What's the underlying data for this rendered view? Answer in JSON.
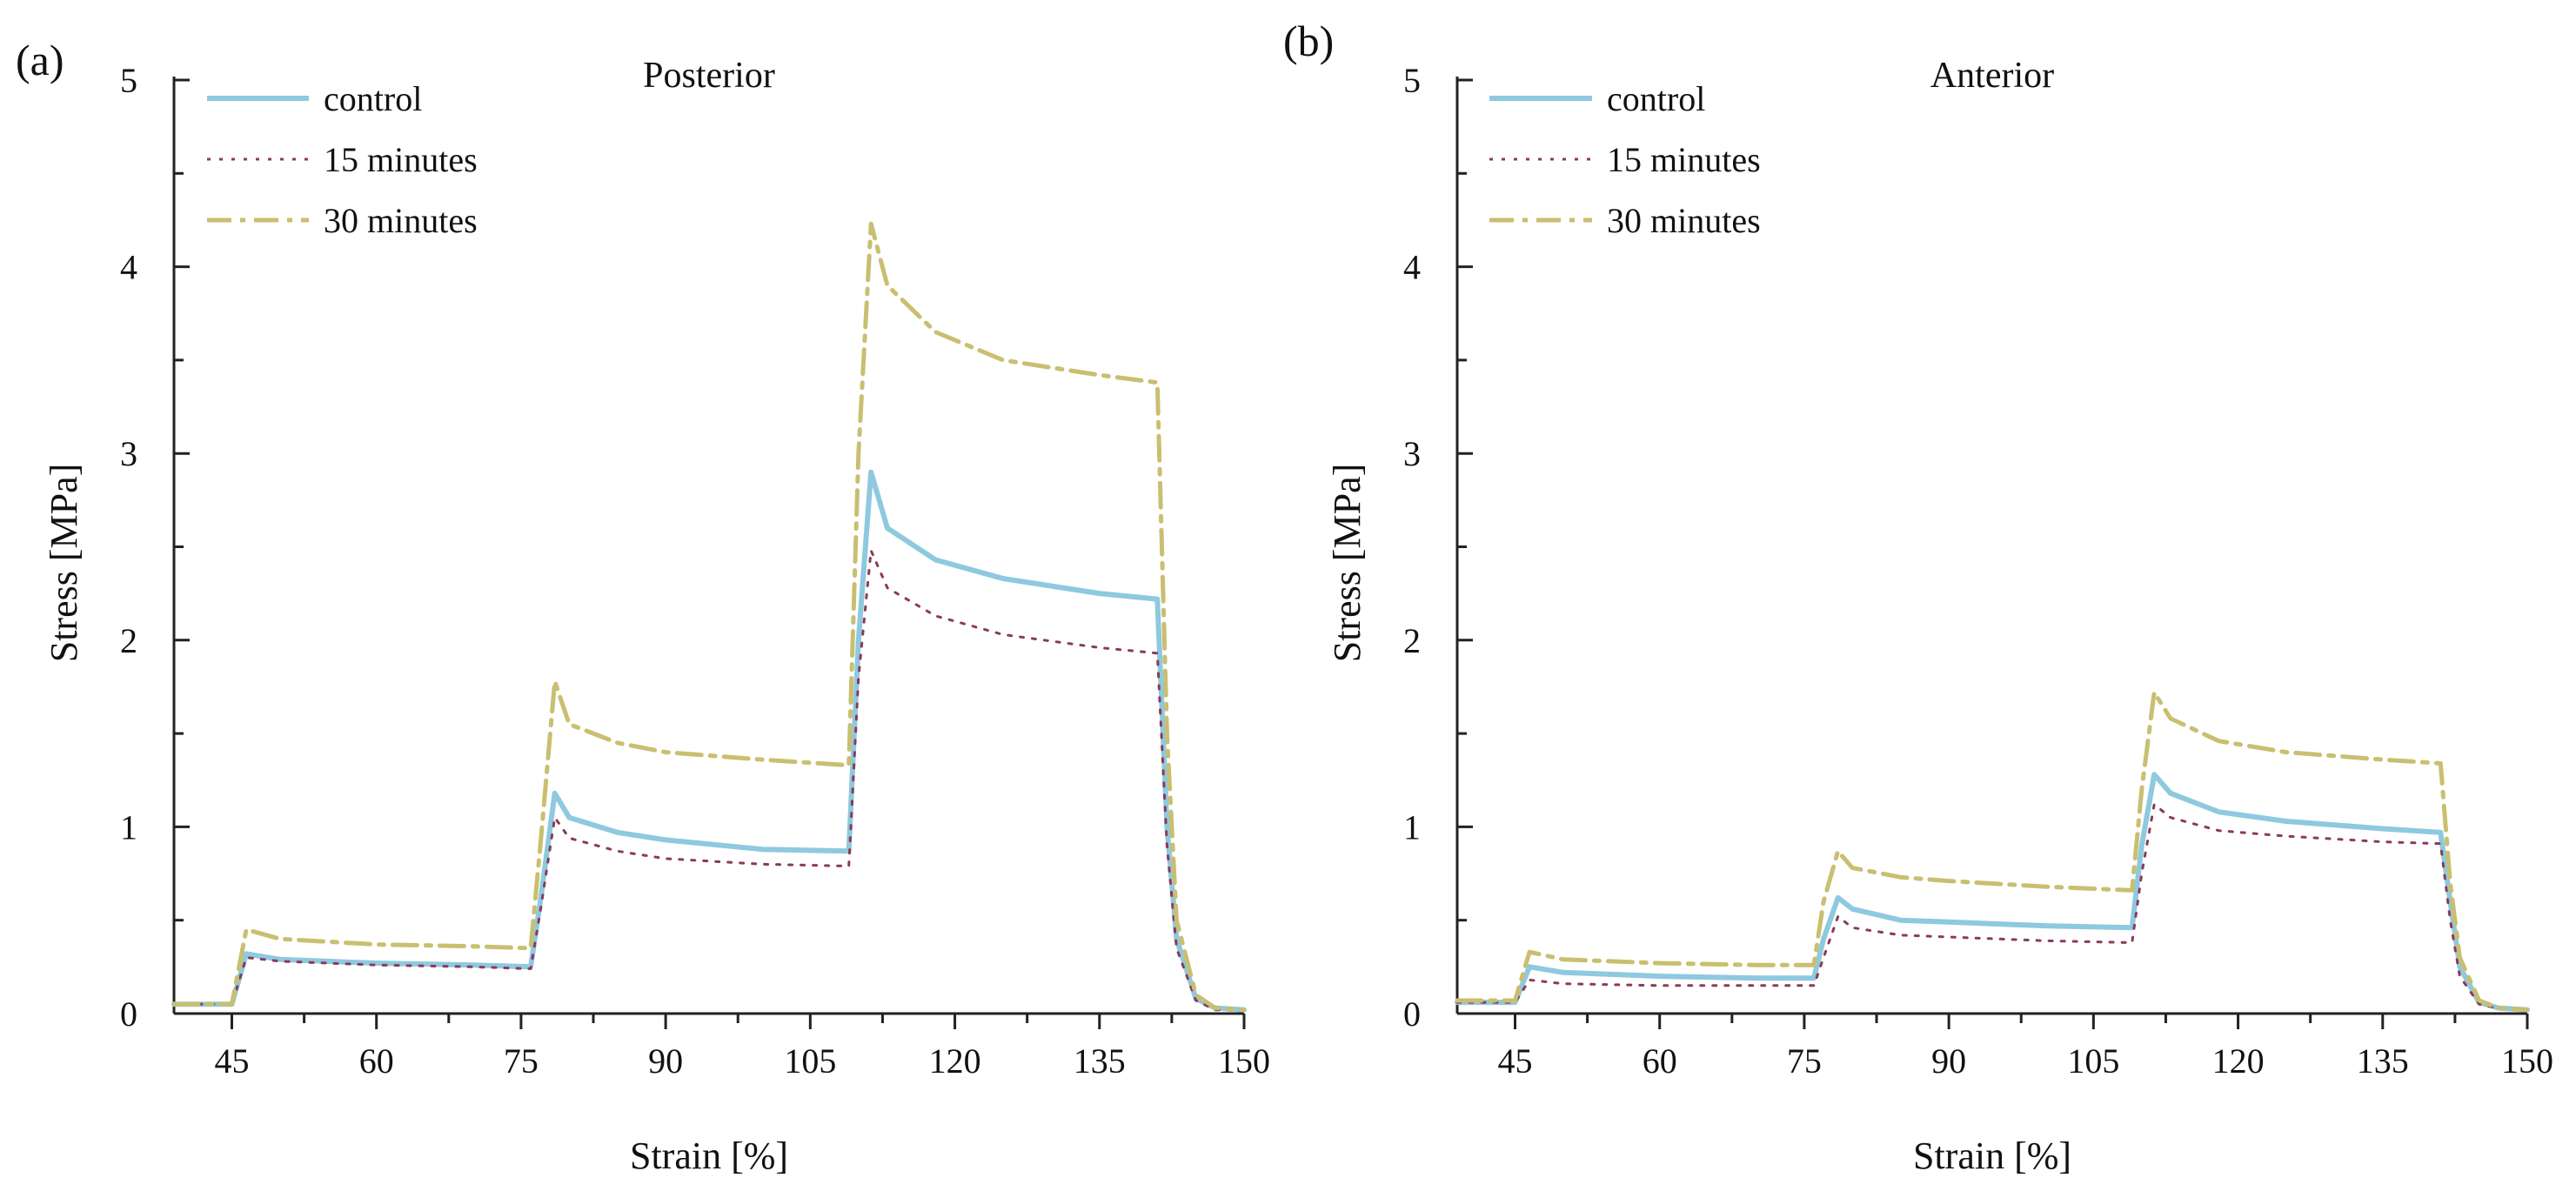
{
  "chart_data": [
    {
      "type": "line",
      "panel_label": "(a)",
      "title": "Posterior",
      "xlabel": "Strain [%]",
      "ylabel": "Stress [MPa]",
      "xlim": [
        39,
        150
      ],
      "ylim": [
        0,
        5
      ],
      "xticks": [
        45,
        60,
        75,
        90,
        105,
        120,
        135,
        150
      ],
      "yticks": [
        0,
        1,
        2,
        3,
        4,
        5
      ],
      "grid": false,
      "legend": "top-left",
      "series": [
        {
          "name": "control",
          "color": "#8ec9df",
          "style": "solid",
          "x": [
            39,
            45,
            46.5,
            50,
            60,
            70,
            76,
            77,
            78.5,
            80,
            85,
            90,
            100,
            109,
            110,
            111.3,
            113,
            118,
            125,
            135,
            141,
            142,
            143,
            145,
            147,
            150
          ],
          "y": [
            0.05,
            0.05,
            0.32,
            0.29,
            0.27,
            0.26,
            0.25,
            0.6,
            1.18,
            1.05,
            0.97,
            0.93,
            0.88,
            0.87,
            2.0,
            2.9,
            2.6,
            2.43,
            2.33,
            2.25,
            2.22,
            1.0,
            0.4,
            0.08,
            0.03,
            0.02
          ]
        },
        {
          "name": "15 minutes",
          "color": "#8b3a5a",
          "style": "dotted",
          "x": [
            39,
            45,
            46.5,
            50,
            60,
            70,
            76,
            77,
            78.5,
            80,
            85,
            90,
            100,
            109,
            110,
            111.3,
            113,
            118,
            125,
            135,
            141,
            142,
            143,
            145,
            147,
            150
          ],
          "y": [
            0.05,
            0.05,
            0.3,
            0.28,
            0.26,
            0.25,
            0.24,
            0.55,
            1.05,
            0.94,
            0.87,
            0.83,
            0.8,
            0.79,
            1.8,
            2.48,
            2.28,
            2.13,
            2.03,
            1.96,
            1.93,
            0.9,
            0.35,
            0.07,
            0.02,
            0.02
          ]
        },
        {
          "name": "30 minutes",
          "color": "#c9bf70",
          "style": "dashdot",
          "x": [
            39,
            45,
            46.5,
            50,
            60,
            70,
            76,
            77,
            78.5,
            80,
            85,
            90,
            100,
            109,
            110,
            111.3,
            113,
            118,
            125,
            135,
            141,
            142,
            143,
            145,
            147,
            150
          ],
          "y": [
            0.05,
            0.05,
            0.45,
            0.4,
            0.37,
            0.36,
            0.35,
            0.9,
            1.78,
            1.55,
            1.45,
            1.4,
            1.36,
            1.33,
            3.0,
            4.23,
            3.9,
            3.65,
            3.5,
            3.42,
            3.38,
            1.5,
            0.5,
            0.1,
            0.03,
            0.02
          ]
        }
      ]
    },
    {
      "type": "line",
      "panel_label": "(b)",
      "title": "Anterior",
      "xlabel": "Strain [%]",
      "ylabel": "Stress [MPa]",
      "xlim": [
        39,
        150
      ],
      "ylim": [
        0,
        5
      ],
      "xticks": [
        45,
        60,
        75,
        90,
        105,
        120,
        135,
        150
      ],
      "yticks": [
        0,
        1,
        2,
        3,
        4,
        5
      ],
      "grid": false,
      "legend": "top-left",
      "series": [
        {
          "name": "control",
          "color": "#8ec9df",
          "style": "solid",
          "x": [
            39,
            45,
            46.5,
            50,
            60,
            70,
            76,
            77,
            78.5,
            80,
            85,
            90,
            100,
            109,
            110,
            111.3,
            113,
            118,
            125,
            135,
            141,
            142,
            143,
            145,
            147,
            150
          ],
          "y": [
            0.06,
            0.06,
            0.25,
            0.22,
            0.2,
            0.19,
            0.19,
            0.4,
            0.62,
            0.56,
            0.5,
            0.49,
            0.47,
            0.46,
            0.9,
            1.28,
            1.18,
            1.08,
            1.03,
            0.99,
            0.97,
            0.6,
            0.25,
            0.06,
            0.03,
            0.02
          ]
        },
        {
          "name": "15 minutes",
          "color": "#8b3a5a",
          "style": "dotted",
          "x": [
            39,
            45,
            46.5,
            50,
            60,
            70,
            76,
            77,
            78.5,
            80,
            85,
            90,
            100,
            109,
            110,
            111.3,
            113,
            118,
            125,
            135,
            141,
            142,
            143,
            145,
            147,
            150
          ],
          "y": [
            0.06,
            0.06,
            0.18,
            0.16,
            0.15,
            0.15,
            0.15,
            0.3,
            0.52,
            0.46,
            0.42,
            0.41,
            0.39,
            0.38,
            0.75,
            1.12,
            1.05,
            0.98,
            0.95,
            0.92,
            0.91,
            0.5,
            0.2,
            0.05,
            0.03,
            0.02
          ]
        },
        {
          "name": "30 minutes",
          "color": "#c9bf70",
          "style": "dashdot",
          "x": [
            39,
            45,
            46.5,
            50,
            60,
            70,
            76,
            77,
            78.5,
            80,
            85,
            90,
            100,
            109,
            110,
            111.3,
            113,
            118,
            125,
            135,
            141,
            142,
            143,
            145,
            147,
            150
          ],
          "y": [
            0.07,
            0.07,
            0.33,
            0.29,
            0.27,
            0.26,
            0.26,
            0.6,
            0.87,
            0.78,
            0.73,
            0.71,
            0.68,
            0.66,
            1.2,
            1.72,
            1.58,
            1.46,
            1.4,
            1.36,
            1.34,
            0.7,
            0.3,
            0.07,
            0.03,
            0.02
          ]
        }
      ]
    }
  ]
}
